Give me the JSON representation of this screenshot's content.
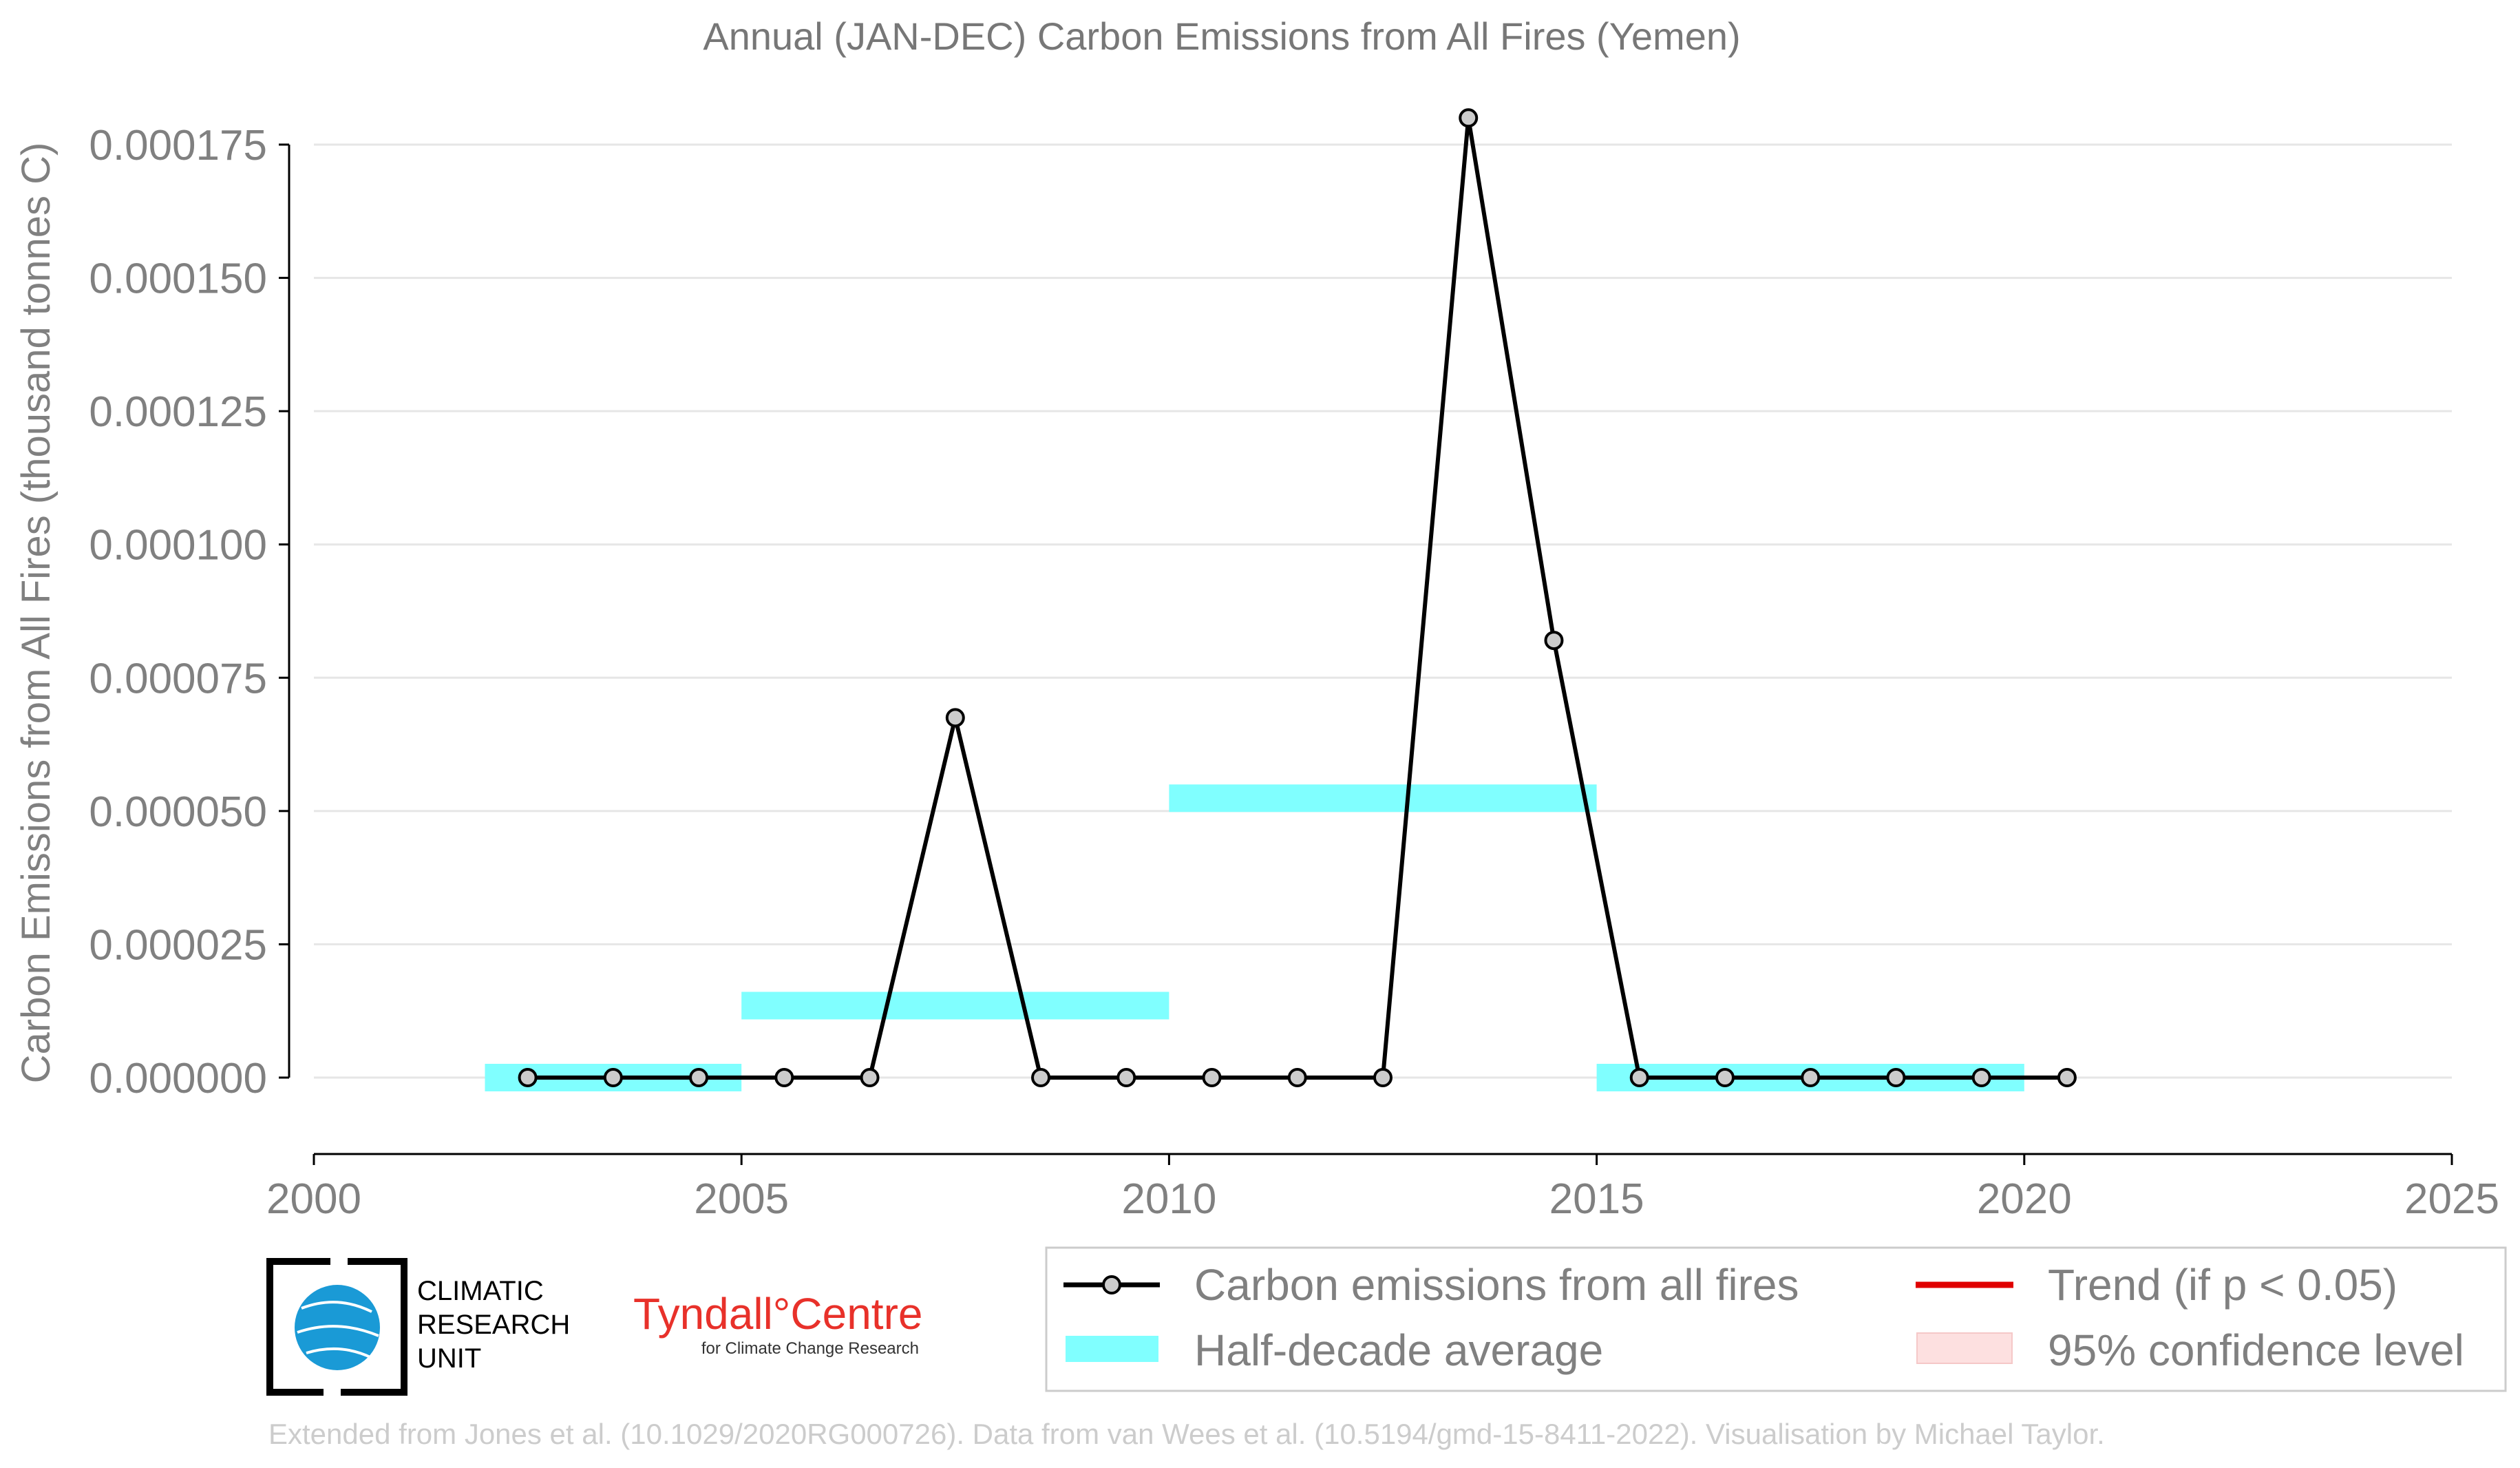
{
  "chart_data": {
    "type": "line",
    "title": "Annual (JAN-DEC) Carbon Emissions from All Fires (Yemen)",
    "xlabel": "",
    "ylabel": "Carbon Emissions from All Fires (thousand tonnes C)",
    "xlim": [
      2000,
      2025
    ],
    "ylim": [
      -1.4e-05,
      0.00018
    ],
    "x_ticks": [
      "2000",
      "2005",
      "2010",
      "2015",
      "2020",
      "2025"
    ],
    "y_ticks": [
      "0.000000",
      "0.000025",
      "0.000050",
      "0.000075",
      "0.000100",
      "0.000125",
      "0.000150",
      "0.000175"
    ],
    "grid": "horizontal",
    "series": [
      {
        "name": "Carbon emissions from all fires",
        "color": "#000000",
        "marker_fill": "#cccccc",
        "x": [
          2002.5,
          2003.5,
          2004.5,
          2005.5,
          2006.5,
          2007.5,
          2008.5,
          2009.5,
          2010.5,
          2011.5,
          2012.5,
          2013.5,
          2014.5,
          2015.5,
          2016.5,
          2017.5,
          2018.5,
          2019.5,
          2020.5
        ],
        "y": [
          0,
          0,
          0,
          0,
          0,
          6.75e-05,
          0,
          0,
          0,
          0,
          0,
          0.00018,
          8.2e-05,
          0,
          0,
          0,
          0,
          0,
          0
        ]
      }
    ],
    "half_decade_average": {
      "name": "Half-decade average",
      "color": "#80ffff",
      "segments": [
        {
          "x0": 2002,
          "x1": 2005,
          "y": 0
        },
        {
          "x0": 2005,
          "x1": 2010,
          "y": 1.35e-05
        },
        {
          "x0": 2010,
          "x1": 2015,
          "y": 5.24e-05
        },
        {
          "x0": 2015,
          "x1": 2020,
          "y": 0
        }
      ]
    },
    "legend": {
      "placement": "bottom-right",
      "entries": [
        {
          "label": "Carbon emissions from all fires",
          "color": "#000000"
        },
        {
          "label": "Half-decade average",
          "color": "#80ffff"
        },
        {
          "label": "Trend (if p < 0.05)",
          "color": "#e00000"
        },
        {
          "label": "95% confidence level",
          "color": "#fde0e0"
        }
      ]
    }
  },
  "logos": {
    "cru_lines": [
      "CLIMATIC",
      "RESEARCH",
      "UNIT"
    ],
    "tyndall_main": "Tyndall°Centre",
    "tyndall_sub": "for Climate Change Research"
  },
  "credit": "Extended from Jones et al. (10.1029/2020RG000726). Data from van Wees et al. (10.5194/gmd-15-8411-2022). Visualisation by Michael Taylor."
}
